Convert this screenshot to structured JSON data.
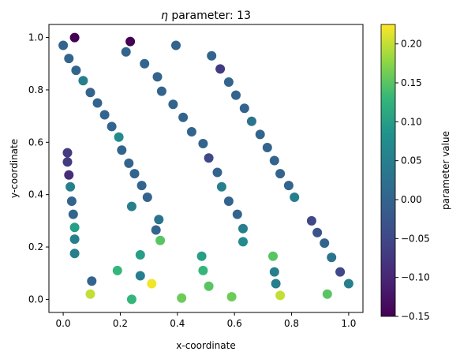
{
  "chart_data": {
    "type": "scatter",
    "title_prefix": "η",
    "title_suffix": " parameter: 13",
    "xlabel": "x-coordinate",
    "ylabel": "y-coordinate",
    "xlim": [
      -0.05,
      1.05
    ],
    "ylim": [
      -0.05,
      1.05
    ],
    "xticks": [
      0.0,
      0.2,
      0.4,
      0.6,
      0.8,
      1.0
    ],
    "yticks": [
      0.0,
      0.2,
      0.4,
      0.6,
      0.8,
      1.0
    ],
    "xtick_labels": [
      "0.0",
      "0.2",
      "0.4",
      "0.6",
      "0.8",
      "1.0"
    ],
    "ytick_labels": [
      "0.0",
      "0.2",
      "0.4",
      "0.6",
      "0.8",
      "1.0"
    ],
    "grid": false,
    "colormap": "viridis",
    "colorbar": {
      "label": "parameter value",
      "vmin": -0.15,
      "vmax": 0.225,
      "ticks": [
        -0.15,
        -0.1,
        -0.05,
        0.0,
        0.05,
        0.1,
        0.15,
        0.2
      ],
      "tick_labels": [
        "−0.15",
        "−0.10",
        "−0.05",
        "0.00",
        "0.05",
        "0.10",
        "0.15",
        "0.20"
      ]
    },
    "points": [
      {
        "x": 0.04,
        "y": 1.0,
        "c": -0.15
      },
      {
        "x": 0.0,
        "y": 0.97,
        "c": 0.0
      },
      {
        "x": 0.02,
        "y": 0.92,
        "c": 0.0
      },
      {
        "x": 0.045,
        "y": 0.875,
        "c": 0.0
      },
      {
        "x": 0.07,
        "y": 0.835,
        "c": 0.05
      },
      {
        "x": 0.095,
        "y": 0.79,
        "c": 0.0
      },
      {
        "x": 0.12,
        "y": 0.75,
        "c": 0.0
      },
      {
        "x": 0.145,
        "y": 0.705,
        "c": 0.0
      },
      {
        "x": 0.17,
        "y": 0.66,
        "c": 0.0
      },
      {
        "x": 0.195,
        "y": 0.62,
        "c": 0.07
      },
      {
        "x": 0.205,
        "y": 0.57,
        "c": 0.0
      },
      {
        "x": 0.23,
        "y": 0.52,
        "c": 0.0
      },
      {
        "x": 0.25,
        "y": 0.48,
        "c": 0.0
      },
      {
        "x": 0.275,
        "y": 0.435,
        "c": 0.0
      },
      {
        "x": 0.295,
        "y": 0.39,
        "c": 0.0
      },
      {
        "x": 0.015,
        "y": 0.56,
        "c": -0.07
      },
      {
        "x": 0.015,
        "y": 0.525,
        "c": -0.07
      },
      {
        "x": 0.02,
        "y": 0.475,
        "c": -0.09
      },
      {
        "x": 0.025,
        "y": 0.43,
        "c": 0.05
      },
      {
        "x": 0.03,
        "y": 0.375,
        "c": 0.0
      },
      {
        "x": 0.035,
        "y": 0.325,
        "c": 0.0
      },
      {
        "x": 0.04,
        "y": 0.275,
        "c": 0.1
      },
      {
        "x": 0.04,
        "y": 0.23,
        "c": 0.05
      },
      {
        "x": 0.04,
        "y": 0.175,
        "c": 0.05
      },
      {
        "x": 0.1,
        "y": 0.07,
        "c": 0.0
      },
      {
        "x": 0.095,
        "y": 0.02,
        "c": 0.2
      },
      {
        "x": 0.235,
        "y": 0.985,
        "c": -0.15
      },
      {
        "x": 0.22,
        "y": 0.945,
        "c": 0.0
      },
      {
        "x": 0.285,
        "y": 0.9,
        "c": 0.0
      },
      {
        "x": 0.33,
        "y": 0.85,
        "c": 0.0
      },
      {
        "x": 0.345,
        "y": 0.795,
        "c": 0.0
      },
      {
        "x": 0.385,
        "y": 0.745,
        "c": 0.0
      },
      {
        "x": 0.42,
        "y": 0.695,
        "c": 0.0
      },
      {
        "x": 0.45,
        "y": 0.64,
        "c": 0.0
      },
      {
        "x": 0.49,
        "y": 0.595,
        "c": 0.0
      },
      {
        "x": 0.51,
        "y": 0.54,
        "c": -0.05
      },
      {
        "x": 0.54,
        "y": 0.485,
        "c": 0.0
      },
      {
        "x": 0.555,
        "y": 0.43,
        "c": 0.05
      },
      {
        "x": 0.58,
        "y": 0.375,
        "c": 0.0
      },
      {
        "x": 0.61,
        "y": 0.325,
        "c": 0.0
      },
      {
        "x": 0.63,
        "y": 0.27,
        "c": 0.05
      },
      {
        "x": 0.63,
        "y": 0.22,
        "c": 0.07
      },
      {
        "x": 0.24,
        "y": 0.355,
        "c": 0.05
      },
      {
        "x": 0.335,
        "y": 0.305,
        "c": 0.03
      },
      {
        "x": 0.325,
        "y": 0.265,
        "c": 0.0
      },
      {
        "x": 0.34,
        "y": 0.225,
        "c": 0.15
      },
      {
        "x": 0.27,
        "y": 0.17,
        "c": 0.1
      },
      {
        "x": 0.19,
        "y": 0.11,
        "c": 0.13
      },
      {
        "x": 0.27,
        "y": 0.09,
        "c": 0.05
      },
      {
        "x": 0.31,
        "y": 0.06,
        "c": 0.22
      },
      {
        "x": 0.24,
        "y": 0.0,
        "c": 0.13
      },
      {
        "x": 0.395,
        "y": 0.97,
        "c": 0.0
      },
      {
        "x": 0.52,
        "y": 0.93,
        "c": 0.0
      },
      {
        "x": 0.55,
        "y": 0.88,
        "c": -0.07
      },
      {
        "x": 0.58,
        "y": 0.83,
        "c": 0.0
      },
      {
        "x": 0.605,
        "y": 0.78,
        "c": 0.0
      },
      {
        "x": 0.635,
        "y": 0.73,
        "c": 0.0
      },
      {
        "x": 0.66,
        "y": 0.68,
        "c": 0.03
      },
      {
        "x": 0.69,
        "y": 0.63,
        "c": 0.0
      },
      {
        "x": 0.715,
        "y": 0.58,
        "c": 0.0
      },
      {
        "x": 0.74,
        "y": 0.53,
        "c": 0.0
      },
      {
        "x": 0.76,
        "y": 0.48,
        "c": 0.0
      },
      {
        "x": 0.79,
        "y": 0.435,
        "c": 0.0
      },
      {
        "x": 0.81,
        "y": 0.39,
        "c": 0.05
      },
      {
        "x": 0.87,
        "y": 0.3,
        "c": -0.05
      },
      {
        "x": 0.89,
        "y": 0.255,
        "c": -0.03
      },
      {
        "x": 0.915,
        "y": 0.215,
        "c": 0.0
      },
      {
        "x": 0.94,
        "y": 0.16,
        "c": 0.03
      },
      {
        "x": 0.97,
        "y": 0.105,
        "c": -0.05
      },
      {
        "x": 1.0,
        "y": 0.06,
        "c": 0.05
      },
      {
        "x": 0.485,
        "y": 0.165,
        "c": 0.1
      },
      {
        "x": 0.49,
        "y": 0.11,
        "c": 0.13
      },
      {
        "x": 0.51,
        "y": 0.05,
        "c": 0.15
      },
      {
        "x": 0.415,
        "y": 0.005,
        "c": 0.16
      },
      {
        "x": 0.59,
        "y": 0.01,
        "c": 0.16
      },
      {
        "x": 0.735,
        "y": 0.165,
        "c": 0.15
      },
      {
        "x": 0.74,
        "y": 0.105,
        "c": 0.05
      },
      {
        "x": 0.745,
        "y": 0.06,
        "c": 0.05
      },
      {
        "x": 0.76,
        "y": 0.015,
        "c": 0.2
      },
      {
        "x": 0.925,
        "y": 0.02,
        "c": 0.15
      }
    ]
  }
}
